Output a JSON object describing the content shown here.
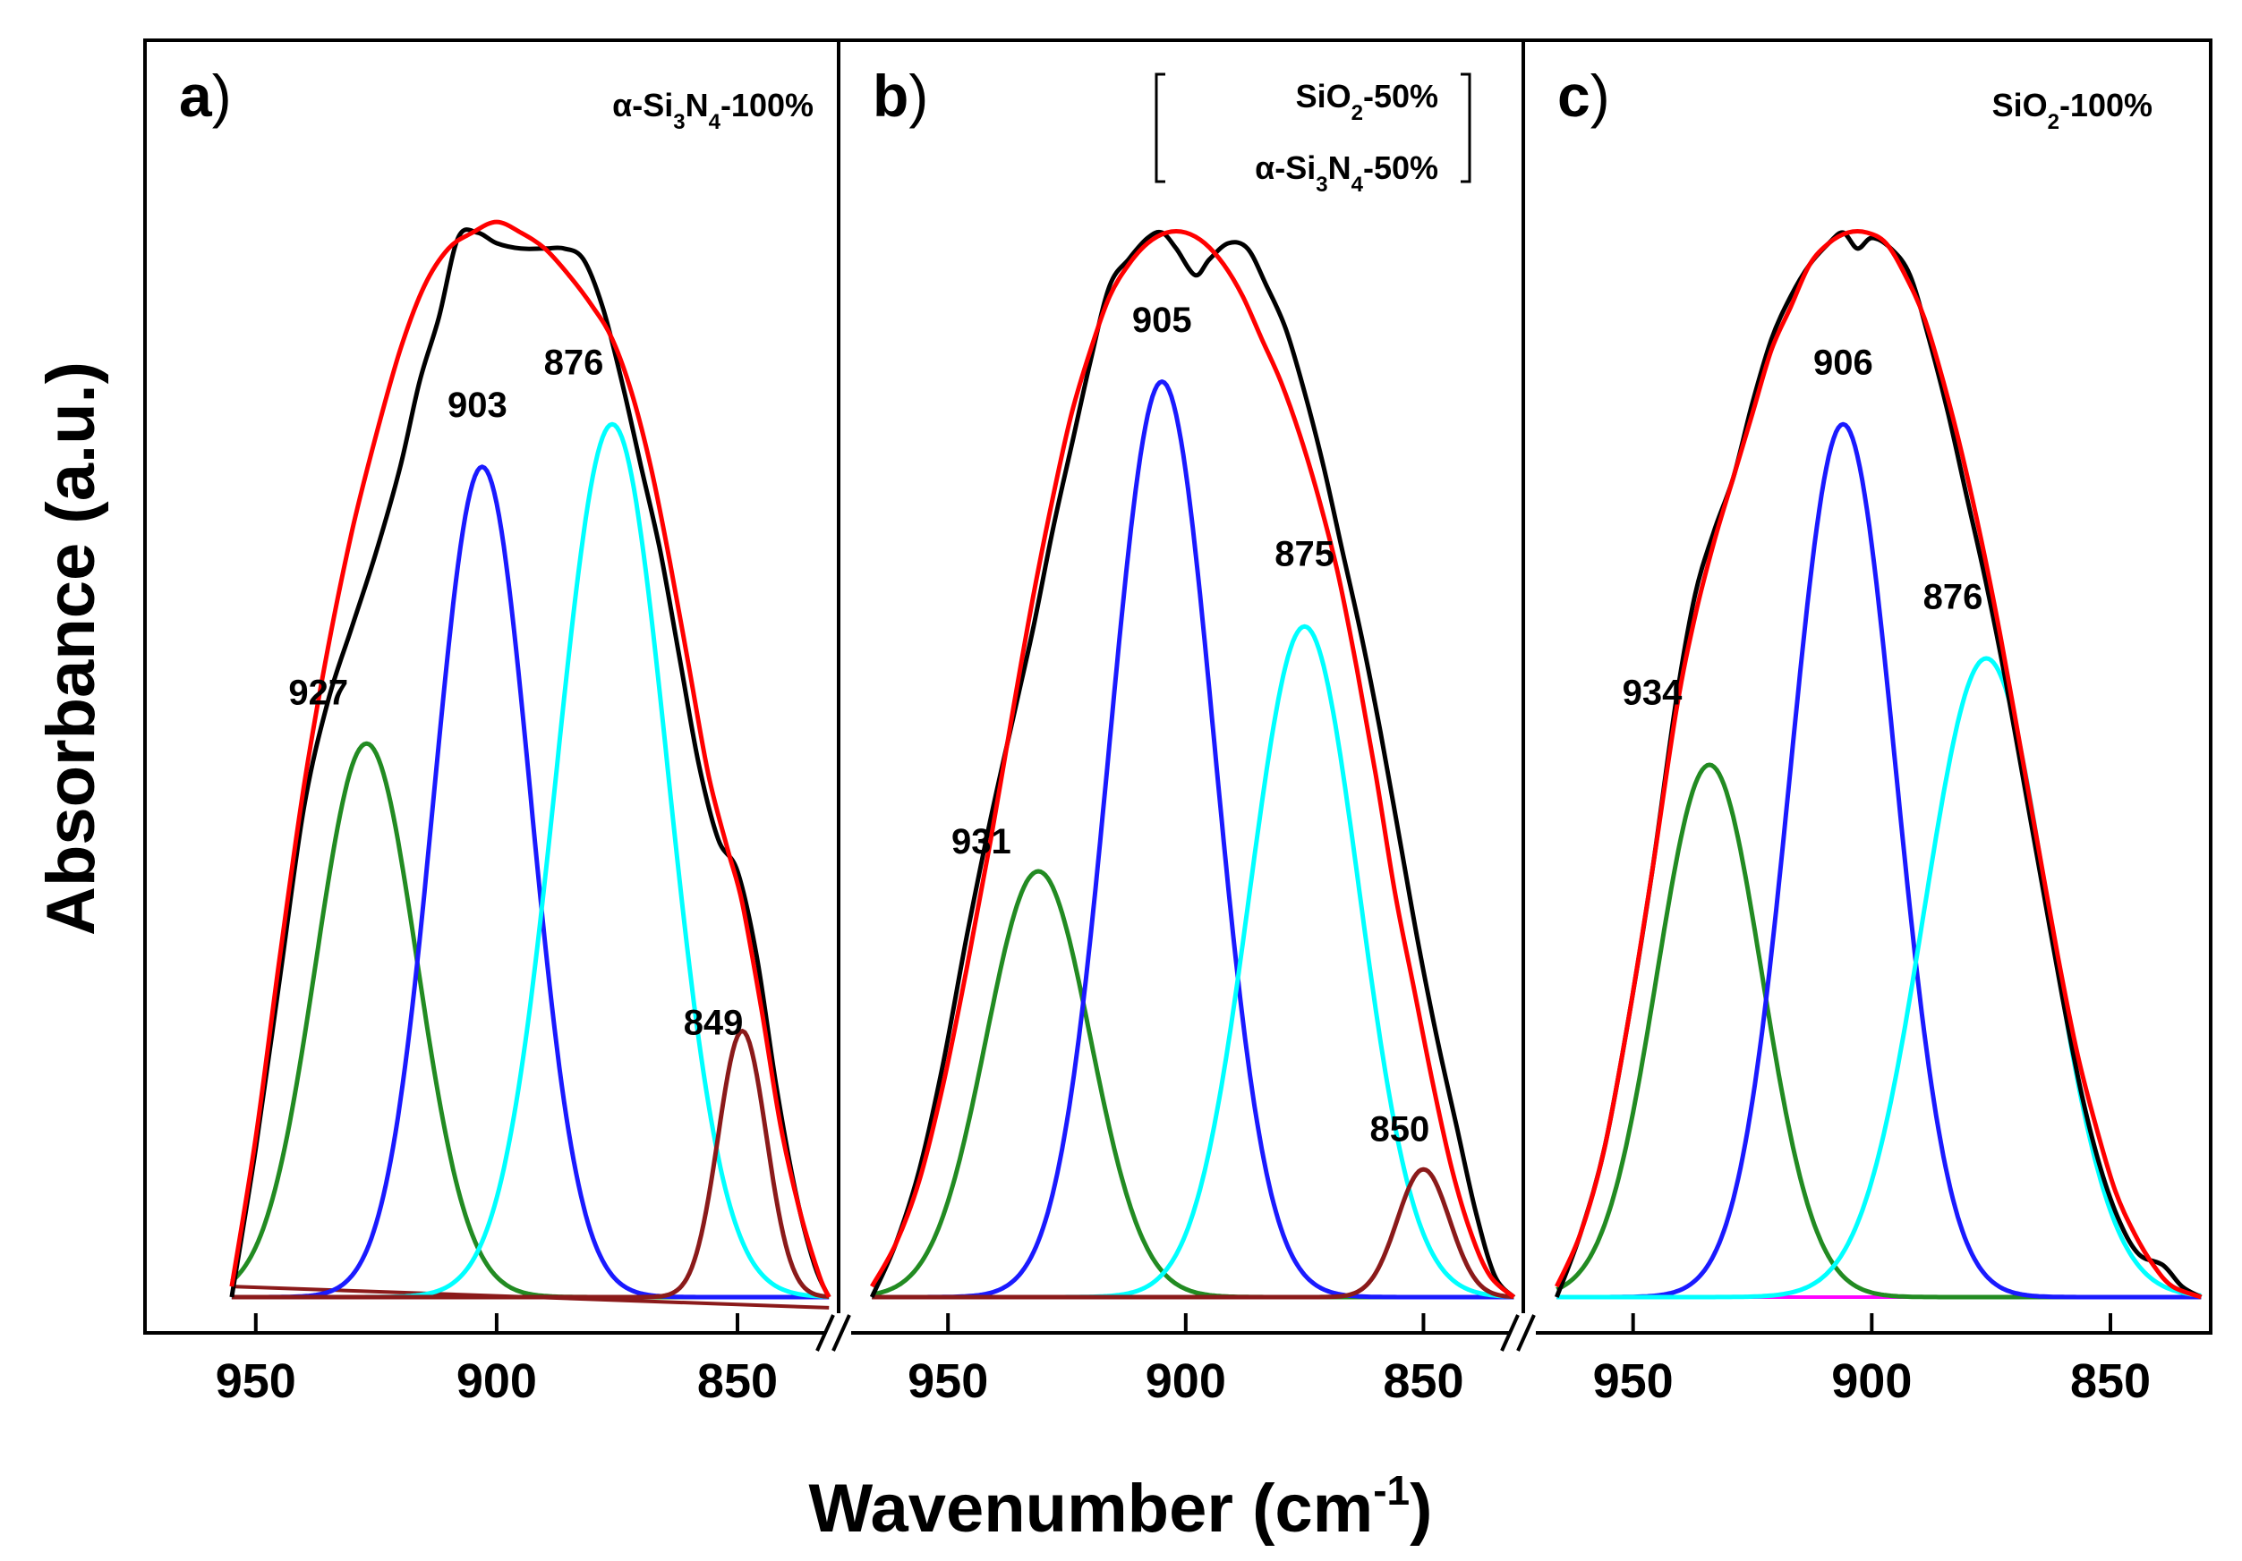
{
  "chart_data": {
    "type": "line",
    "xlabel": "Wavenumber (cm",
    "xlabel_sup": "-1",
    "xlabel_end": ")",
    "ylabel": "Absorbance (a.u.)",
    "colors": {
      "experimental": "#000000",
      "fit": "#ff0000",
      "band1": "#228b22",
      "band2": "#1a1aff",
      "band3": "#00ffff",
      "band4": "#8b1a1a",
      "baseline_c": "#ff00ff"
    },
    "panels": [
      {
        "letter": "a",
        "paren": ")",
        "composition": [
          {
            "parts": [
              {
                "t": "α-Si"
              },
              {
                "t": "3",
                "sub": true
              },
              {
                "t": "N"
              },
              {
                "t": "4",
                "sub": true
              },
              {
                "t": "-100%"
              }
            ]
          }
        ],
        "bracket": false,
        "x_ticks": [
          950,
          900,
          850
        ],
        "xlim": [
          973,
          829
        ],
        "ylim": [
          0,
          1.0
        ],
        "x_start": 955,
        "x_end": 831,
        "baseline_start": 0.01,
        "baseline_end": -0.01,
        "components": [
          {
            "name": "927",
            "center": 927,
            "height": 0.52,
            "sigma": 10.5,
            "color_key": "band1"
          },
          {
            "name": "903",
            "center": 903,
            "height": 0.78,
            "sigma": 10.0,
            "color_key": "band2"
          },
          {
            "name": "876",
            "center": 876,
            "height": 0.82,
            "sigma": 11.5,
            "color_key": "band3"
          },
          {
            "name": "849",
            "center": 849,
            "height": 0.25,
            "sigma": 5.0,
            "color_key": "band4"
          }
        ],
        "peak_labels": [
          {
            "text": "927",
            "x": 937,
            "y": 0.54
          },
          {
            "text": "903",
            "x": 904,
            "y": 0.81
          },
          {
            "text": "876",
            "x": 884,
            "y": 0.85
          },
          {
            "text": "849",
            "x": 855,
            "y": 0.23
          }
        ],
        "experimental": [
          [
            955,
            0.0
          ],
          [
            950,
            0.14
          ],
          [
            945,
            0.3
          ],
          [
            940,
            0.46
          ],
          [
            935,
            0.56
          ],
          [
            930,
            0.63
          ],
          [
            925,
            0.7
          ],
          [
            920,
            0.78
          ],
          [
            916,
            0.86
          ],
          [
            912,
            0.92
          ],
          [
            908,
            0.995
          ],
          [
            904,
            1.0
          ],
          [
            900,
            0.99
          ],
          [
            895,
            0.985
          ],
          [
            890,
            0.985
          ],
          [
            886,
            0.985
          ],
          [
            882,
            0.975
          ],
          [
            878,
            0.93
          ],
          [
            874,
            0.86
          ],
          [
            870,
            0.78
          ],
          [
            866,
            0.7
          ],
          [
            862,
            0.6
          ],
          [
            858,
            0.5
          ],
          [
            854,
            0.43
          ],
          [
            850,
            0.4
          ],
          [
            846,
            0.32
          ],
          [
            842,
            0.2
          ],
          [
            838,
            0.1
          ],
          [
            834,
            0.03
          ],
          [
            831,
            0.0
          ]
        ],
        "fit": [
          [
            955,
            0.01
          ],
          [
            950,
            0.15
          ],
          [
            945,
            0.32
          ],
          [
            940,
            0.48
          ],
          [
            935,
            0.61
          ],
          [
            930,
            0.72
          ],
          [
            925,
            0.81
          ],
          [
            920,
            0.89
          ],
          [
            915,
            0.95
          ],
          [
            910,
            0.985
          ],
          [
            905,
            1.0
          ],
          [
            900,
            1.01
          ],
          [
            895,
            1.0
          ],
          [
            890,
            0.985
          ],
          [
            885,
            0.96
          ],
          [
            880,
            0.93
          ],
          [
            876,
            0.9
          ],
          [
            872,
            0.85
          ],
          [
            868,
            0.78
          ],
          [
            864,
            0.69
          ],
          [
            860,
            0.59
          ],
          [
            856,
            0.49
          ],
          [
            852,
            0.42
          ],
          [
            849,
            0.37
          ],
          [
            845,
            0.27
          ],
          [
            841,
            0.16
          ],
          [
            837,
            0.08
          ],
          [
            833,
            0.02
          ],
          [
            831,
            0.0
          ]
        ]
      },
      {
        "letter": "b",
        "paren": ")",
        "composition": [
          {
            "parts": [
              {
                "t": "SiO"
              },
              {
                "t": "2",
                "sub": true
              },
              {
                "t": "-50%"
              }
            ]
          },
          {
            "parts": [
              {
                "t": "α-Si"
              },
              {
                "t": "3",
                "sub": true
              },
              {
                "t": "N"
              },
              {
                "t": "4",
                "sub": true
              },
              {
                "t": "-50%"
              }
            ]
          }
        ],
        "bracket": true,
        "x_ticks": [
          950,
          900,
          850
        ],
        "xlim": [
          973,
          829
        ],
        "ylim": [
          0,
          1.0
        ],
        "x_start": 966,
        "x_end": 831,
        "baseline_start": 0.0,
        "baseline_end": 0.0,
        "components": [
          {
            "name": "931",
            "center": 931,
            "height": 0.4,
            "sigma": 11.0,
            "color_key": "band1"
          },
          {
            "name": "905",
            "center": 905,
            "height": 0.86,
            "sigma": 11.0,
            "color_key": "band2"
          },
          {
            "name": "875",
            "center": 875,
            "height": 0.63,
            "sigma": 11.5,
            "color_key": "band3"
          },
          {
            "name": "850",
            "center": 850,
            "height": 0.12,
            "sigma": 5.5,
            "color_key": "band4"
          }
        ],
        "peak_labels": [
          {
            "text": "931",
            "x": 943,
            "y": 0.4
          },
          {
            "text": "905",
            "x": 905,
            "y": 0.89
          },
          {
            "text": "875",
            "x": 875,
            "y": 0.67
          },
          {
            "text": "850",
            "x": 855,
            "y": 0.13
          }
        ],
        "experimental": [
          [
            966,
            0.0
          ],
          [
            961,
            0.05
          ],
          [
            956,
            0.12
          ],
          [
            951,
            0.22
          ],
          [
            946,
            0.34
          ],
          [
            941,
            0.45
          ],
          [
            936,
            0.55
          ],
          [
            932,
            0.63
          ],
          [
            928,
            0.72
          ],
          [
            924,
            0.8
          ],
          [
            920,
            0.88
          ],
          [
            916,
            0.95
          ],
          [
            912,
            0.975
          ],
          [
            908,
            0.995
          ],
          [
            905,
            1.0
          ],
          [
            902,
            0.985
          ],
          [
            898,
            0.96
          ],
          [
            895,
            0.975
          ],
          [
            891,
            0.99
          ],
          [
            887,
            0.985
          ],
          [
            883,
            0.95
          ],
          [
            879,
            0.91
          ],
          [
            875,
            0.85
          ],
          [
            871,
            0.78
          ],
          [
            867,
            0.7
          ],
          [
            863,
            0.62
          ],
          [
            859,
            0.53
          ],
          [
            855,
            0.43
          ],
          [
            851,
            0.33
          ],
          [
            847,
            0.24
          ],
          [
            843,
            0.16
          ],
          [
            839,
            0.08
          ],
          [
            835,
            0.02
          ],
          [
            831,
            0.0
          ]
        ],
        "fit": [
          [
            966,
            0.01
          ],
          [
            961,
            0.05
          ],
          [
            956,
            0.11
          ],
          [
            951,
            0.2
          ],
          [
            946,
            0.31
          ],
          [
            941,
            0.43
          ],
          [
            936,
            0.56
          ],
          [
            932,
            0.66
          ],
          [
            928,
            0.75
          ],
          [
            924,
            0.83
          ],
          [
            920,
            0.89
          ],
          [
            916,
            0.94
          ],
          [
            912,
            0.97
          ],
          [
            908,
            0.99
          ],
          [
            904,
            1.0
          ],
          [
            900,
            1.0
          ],
          [
            896,
            0.99
          ],
          [
            892,
            0.97
          ],
          [
            888,
            0.94
          ],
          [
            884,
            0.9
          ],
          [
            880,
            0.86
          ],
          [
            876,
            0.81
          ],
          [
            872,
            0.75
          ],
          [
            868,
            0.68
          ],
          [
            864,
            0.59
          ],
          [
            860,
            0.49
          ],
          [
            856,
            0.38
          ],
          [
            852,
            0.29
          ],
          [
            848,
            0.2
          ],
          [
            844,
            0.12
          ],
          [
            840,
            0.06
          ],
          [
            836,
            0.02
          ],
          [
            831,
            0.0
          ]
        ]
      },
      {
        "letter": "c",
        "paren": ")",
        "composition": [
          {
            "parts": [
              {
                "t": "SiO"
              },
              {
                "t": "2",
                "sub": true
              },
              {
                "t": "-100%"
              }
            ]
          }
        ],
        "bracket": false,
        "x_ticks": [
          950,
          900,
          850
        ],
        "xlim": [
          973,
          829
        ],
        "ylim": [
          0,
          1.0
        ],
        "x_start": 966,
        "x_end": 831,
        "baseline_start": 0.0,
        "baseline_end": 0.0,
        "components": [
          {
            "name": "934",
            "center": 934,
            "height": 0.5,
            "sigma": 11.0,
            "color_key": "band1"
          },
          {
            "name": "906",
            "center": 906,
            "height": 0.82,
            "sigma": 11.0,
            "color_key": "band2"
          },
          {
            "name": "876",
            "center": 876,
            "height": 0.6,
            "sigma": 13.0,
            "color_key": "band3"
          }
        ],
        "peak_labels": [
          {
            "text": "934",
            "x": 946,
            "y": 0.54
          },
          {
            "text": "906",
            "x": 906,
            "y": 0.85
          },
          {
            "text": "876",
            "x": 883,
            "y": 0.63
          },
          {
            "text": "",
            "x": 0,
            "y": 0
          }
        ],
        "experimental": [
          [
            966,
            0.0
          ],
          [
            961,
            0.06
          ],
          [
            956,
            0.14
          ],
          [
            951,
            0.26
          ],
          [
            946,
            0.4
          ],
          [
            941,
            0.56
          ],
          [
            937,
            0.66
          ],
          [
            933,
            0.72
          ],
          [
            929,
            0.77
          ],
          [
            925,
            0.84
          ],
          [
            921,
            0.9
          ],
          [
            917,
            0.94
          ],
          [
            913,
            0.97
          ],
          [
            909,
            0.99
          ],
          [
            906,
            1.0
          ],
          [
            903,
            0.985
          ],
          [
            900,
            0.995
          ],
          [
            896,
            0.985
          ],
          [
            892,
            0.96
          ],
          [
            888,
            0.9
          ],
          [
            884,
            0.83
          ],
          [
            880,
            0.75
          ],
          [
            876,
            0.67
          ],
          [
            872,
            0.58
          ],
          [
            868,
            0.48
          ],
          [
            864,
            0.38
          ],
          [
            860,
            0.28
          ],
          [
            856,
            0.19
          ],
          [
            852,
            0.12
          ],
          [
            848,
            0.07
          ],
          [
            844,
            0.04
          ],
          [
            839,
            0.03
          ],
          [
            835,
            0.01
          ],
          [
            831,
            0.0
          ]
        ],
        "fit": [
          [
            966,
            0.01
          ],
          [
            961,
            0.06
          ],
          [
            956,
            0.14
          ],
          [
            951,
            0.26
          ],
          [
            946,
            0.4
          ],
          [
            941,
            0.55
          ],
          [
            937,
            0.64
          ],
          [
            933,
            0.71
          ],
          [
            929,
            0.77
          ],
          [
            925,
            0.83
          ],
          [
            921,
            0.89
          ],
          [
            917,
            0.93
          ],
          [
            913,
            0.97
          ],
          [
            909,
            0.99
          ],
          [
            905,
            1.0
          ],
          [
            901,
            1.0
          ],
          [
            897,
            0.99
          ],
          [
            893,
            0.96
          ],
          [
            889,
            0.92
          ],
          [
            885,
            0.86
          ],
          [
            881,
            0.79
          ],
          [
            877,
            0.71
          ],
          [
            873,
            0.62
          ],
          [
            869,
            0.52
          ],
          [
            865,
            0.42
          ],
          [
            861,
            0.32
          ],
          [
            857,
            0.23
          ],
          [
            853,
            0.16
          ],
          [
            849,
            0.1
          ],
          [
            845,
            0.06
          ],
          [
            841,
            0.03
          ],
          [
            837,
            0.01
          ],
          [
            831,
            0.0
          ]
        ]
      }
    ]
  }
}
